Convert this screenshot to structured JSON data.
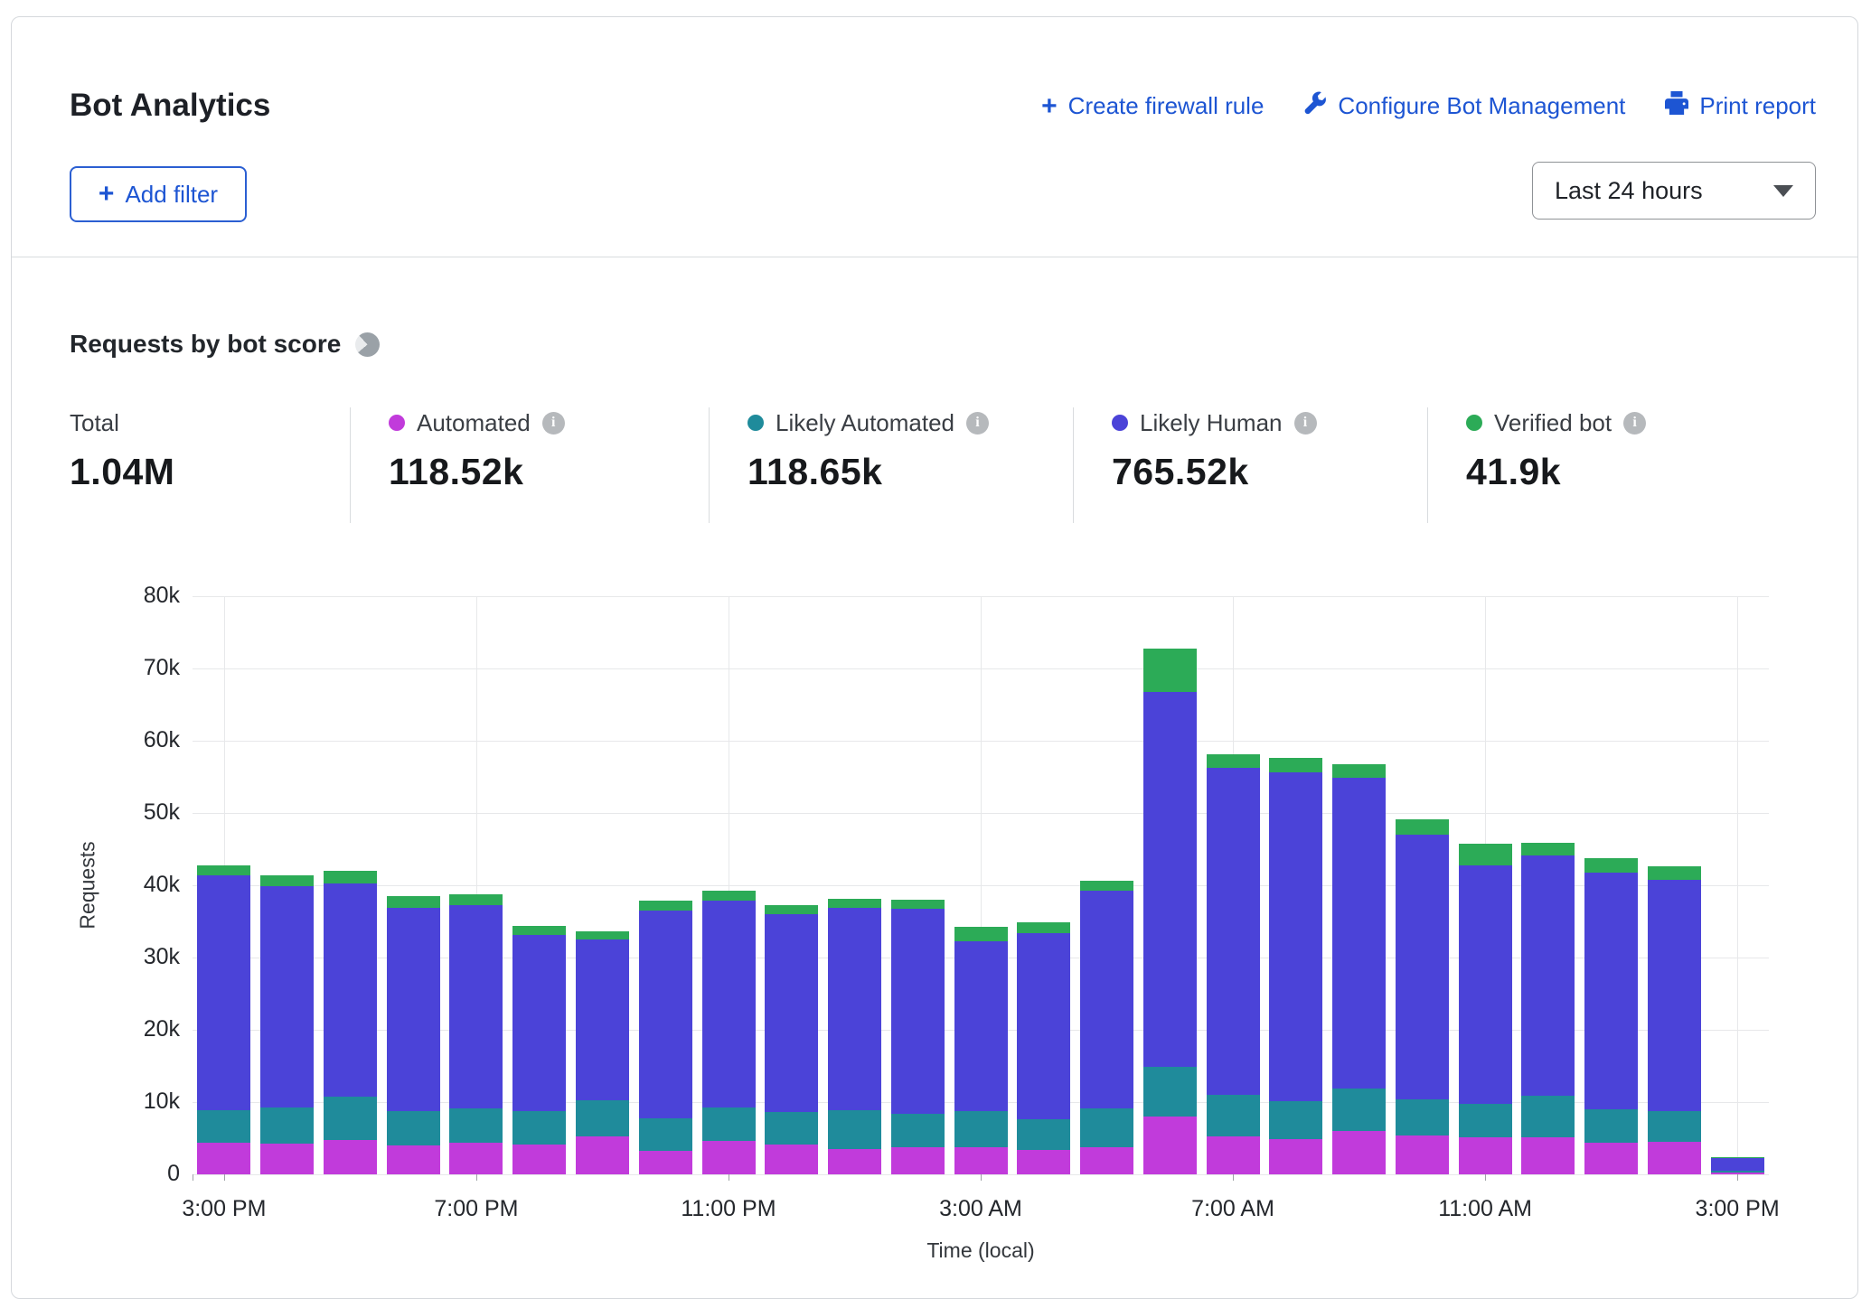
{
  "header": {
    "title": "Bot Analytics",
    "actions": [
      {
        "id": "create-firewall-rule",
        "icon": "plus-icon",
        "label": "Create firewall rule"
      },
      {
        "id": "configure-bot-management",
        "icon": "wrench-icon",
        "label": "Configure Bot Management"
      },
      {
        "id": "print-report",
        "icon": "printer-icon",
        "label": "Print report"
      }
    ],
    "add_filter_label": "Add filter",
    "time_range_value": "Last 24 hours"
  },
  "section": {
    "title": "Requests by bot score"
  },
  "stats": [
    {
      "label": "Total",
      "value": "1.04M",
      "color": null,
      "has_info": false
    },
    {
      "label": "Automated",
      "value": "118.52k",
      "color": "#c13bdb",
      "has_info": true
    },
    {
      "label": "Likely Automated",
      "value": "118.65k",
      "color": "#1f8b9b",
      "has_info": true
    },
    {
      "label": "Likely Human",
      "value": "765.52k",
      "color": "#4b43d8",
      "has_info": true
    },
    {
      "label": "Verified bot",
      "value": "41.9k",
      "color": "#2cab57",
      "has_info": true
    }
  ],
  "chart_data": {
    "type": "bar",
    "stacked": true,
    "title": "Requests by bot score",
    "xlabel": "Time (local)",
    "ylabel": "Requests",
    "ylim": [
      0,
      80000
    ],
    "grid": true,
    "ytick_labels": [
      "0",
      "10k",
      "20k",
      "30k",
      "40k",
      "50k",
      "60k",
      "70k",
      "80k"
    ],
    "x_hours": 25,
    "x_ticks": [
      {
        "bar": 0,
        "label": "3:00 PM"
      },
      {
        "bar": 4,
        "label": "7:00 PM"
      },
      {
        "bar": 8,
        "label": "11:00 PM"
      },
      {
        "bar": 12,
        "label": "3:00 AM"
      },
      {
        "bar": 16,
        "label": "7:00 AM"
      },
      {
        "bar": 20,
        "label": "11:00 AM"
      },
      {
        "bar": 24,
        "label": "3:00 PM"
      }
    ],
    "series": [
      {
        "name": "Automated",
        "color": "#c13bdb",
        "values": [
          4400,
          4300,
          4700,
          4000,
          4400,
          4100,
          5200,
          3300,
          4600,
          4100,
          3500,
          3800,
          3700,
          3400,
          3700,
          8000,
          5200,
          4900,
          6000,
          5400,
          5100,
          5100,
          4400,
          4500,
          200
        ]
      },
      {
        "name": "Likely Automated",
        "color": "#1f8b9b",
        "values": [
          4500,
          4900,
          6000,
          4700,
          4700,
          4700,
          5000,
          4500,
          4600,
          4500,
          5400,
          4600,
          5000,
          4200,
          5400,
          6900,
          5800,
          5200,
          5900,
          5000,
          4700,
          5800,
          4600,
          4200,
          250
        ]
      },
      {
        "name": "Likely Human",
        "color": "#4b43d8",
        "values": [
          32500,
          30700,
          29600,
          28200,
          28200,
          24300,
          22300,
          28700,
          28700,
          27400,
          28000,
          28400,
          23500,
          25800,
          30200,
          51900,
          45300,
          45500,
          43000,
          36600,
          32900,
          33200,
          32800,
          32100,
          1850
        ]
      },
      {
        "name": "Verified bot",
        "color": "#2cab57",
        "values": [
          1400,
          1500,
          1700,
          1600,
          1500,
          1300,
          1100,
          1400,
          1300,
          1300,
          1200,
          1200,
          2000,
          1500,
          1300,
          5900,
          1800,
          2000,
          1900,
          2100,
          3000,
          1800,
          1900,
          1800,
          100
        ]
      }
    ]
  }
}
